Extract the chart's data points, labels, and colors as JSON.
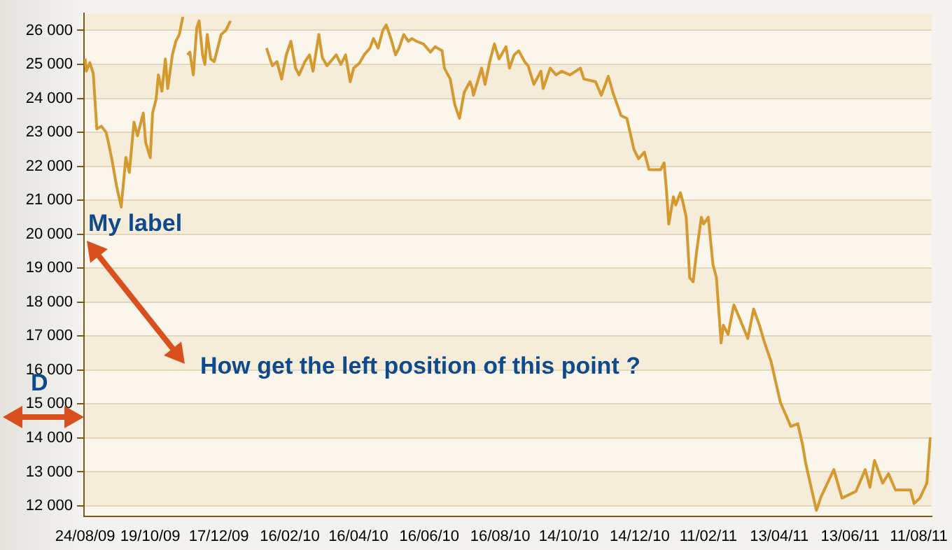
{
  "chart_data": {
    "type": "line",
    "color": "#d49a30",
    "grid": "y",
    "line_style": "solid",
    "x": [
      "2009-08-24",
      "2009-08-25",
      "2009-08-28",
      "2009-08-31",
      "2009-09-03",
      "2009-09-07",
      "2009-09-11",
      "2009-09-13",
      "2009-09-16",
      "2009-09-20",
      "2009-09-24",
      "2009-09-28",
      "2009-10-01",
      "2009-10-05",
      "2009-10-08",
      "2009-10-13",
      "2009-10-15",
      "2009-10-19",
      "2009-10-21",
      "2009-10-24",
      "2009-10-26",
      "2009-10-29",
      "2009-11-01",
      "2009-11-03",
      "2009-11-05",
      "2009-11-07",
      "2009-11-10",
      "2009-11-13",
      "2009-11-16",
      "2009-11-18",
      "2009-11-20",
      "2009-11-22",
      "2009-11-25",
      "2009-11-28",
      "2009-11-30",
      "2009-12-03",
      "2009-12-05",
      "2009-12-07",
      "2009-12-10",
      "2009-12-13",
      "2009-12-19",
      "2009-12-23",
      "2009-12-27",
      "2009-12-30",
      "2010-01-03",
      "2010-01-08",
      "2010-01-11",
      "2010-01-15",
      "2010-01-21",
      "2010-01-27",
      "2010-01-30",
      "2010-02-01",
      "2010-02-05",
      "2010-02-09",
      "2010-02-13",
      "2010-02-17",
      "2010-02-21",
      "2010-02-24",
      "2010-03-01",
      "2010-03-05",
      "2010-03-08",
      "2010-03-13",
      "2010-03-16",
      "2010-03-20",
      "2010-03-25",
      "2010-03-28",
      "2010-04-01",
      "2010-04-05",
      "2010-04-09",
      "2010-04-12",
      "2010-04-17",
      "2010-04-21",
      "2010-04-26",
      "2010-04-29",
      "2010-05-03",
      "2010-05-07",
      "2010-05-10",
      "2010-05-14",
      "2010-05-18",
      "2010-05-21",
      "2010-05-25",
      "2010-05-29",
      "2010-06-01",
      "2010-06-05",
      "2010-06-11",
      "2010-06-17",
      "2010-06-21",
      "2010-06-27",
      "2010-06-29",
      "2010-07-04",
      "2010-07-08",
      "2010-07-12",
      "2010-07-16",
      "2010-07-21",
      "2010-07-23",
      "2010-07-24",
      "2010-07-31",
      "2010-08-03",
      "2010-08-07",
      "2010-08-11",
      "2010-08-15",
      "2010-08-21",
      "2010-08-24",
      "2010-08-28",
      "2010-09-01",
      "2010-09-06",
      "2010-09-09",
      "2010-09-14",
      "2010-09-20",
      "2010-09-22",
      "2010-09-28",
      "2010-10-03",
      "2010-10-08",
      "2010-10-15",
      "2010-10-24",
      "2010-10-27",
      "2010-11-06",
      "2010-11-11",
      "2010-11-17",
      "2010-11-21",
      "2010-11-28",
      "2010-12-03",
      "2010-12-09",
      "2010-12-13",
      "2010-12-18",
      "2010-12-22",
      "2011-01-01",
      "2011-01-04",
      "2011-01-06",
      "2011-01-08",
      "2011-01-12",
      "2011-01-14",
      "2011-01-18",
      "2011-01-20",
      "2011-01-23",
      "2011-01-26",
      "2011-01-29",
      "2011-02-01",
      "2011-02-05",
      "2011-02-07",
      "2011-02-11",
      "2011-02-15",
      "2011-02-18",
      "2011-02-22",
      "2011-02-24",
      "2011-02-28",
      "2011-03-05",
      "2011-03-10",
      "2011-03-17",
      "2011-03-22",
      "2011-03-27",
      "2011-03-31",
      "2011-04-06",
      "2011-04-14",
      "2011-04-23",
      "2011-04-29",
      "2011-05-03",
      "2011-05-06",
      "2011-05-15",
      "2011-05-19",
      "2011-05-30",
      "2011-06-06",
      "2011-06-18",
      "2011-06-26",
      "2011-06-30",
      "2011-07-04",
      "2011-07-11",
      "2011-07-16",
      "2011-07-22",
      "2011-08-04",
      "2011-08-07",
      "2011-08-12",
      "2011-08-18",
      "2011-08-21"
    ],
    "values": [
      25170,
      24800,
      25050,
      24730,
      23100,
      23180,
      23000,
      22700,
      22200,
      21420,
      20800,
      22260,
      21820,
      23300,
      22900,
      23570,
      22700,
      22250,
      23570,
      23970,
      24690,
      24210,
      25160,
      24290,
      24770,
      25280,
      25680,
      25880,
      26400,
      null,
      25280,
      25360,
      24690,
      26080,
      26280,
      25280,
      25000,
      25880,
      25160,
      25080,
      25880,
      26000,
      26280,
      null,
      null,
      null,
      null,
      null,
      null,
      25480,
      25160,
      24960,
      25080,
      24570,
      25280,
      25680,
      24890,
      24690,
      25080,
      25280,
      24800,
      25880,
      25200,
      24960,
      25160,
      25280,
      25000,
      25280,
      24490,
      24890,
      25040,
      25280,
      25480,
      25760,
      25480,
      26000,
      26160,
      25760,
      25280,
      25480,
      25880,
      25680,
      25760,
      25680,
      25600,
      25360,
      25520,
      25400,
      24890,
      24570,
      23810,
      23410,
      24170,
      24490,
      24290,
      24090,
      24890,
      24410,
      25080,
      25600,
      25160,
      25520,
      24890,
      25280,
      25400,
      25080,
      24960,
      24410,
      24800,
      24290,
      24890,
      24690,
      24800,
      24690,
      24890,
      24570,
      24490,
      24090,
      24650,
      24170,
      23490,
      23410,
      22500,
      22220,
      22420,
      21900,
      21900,
      22100,
      21300,
      20300,
      21100,
      20860,
      21220,
      20970,
      20500,
      18720,
      18600,
      19500,
      20500,
      20300,
      20500,
      19110,
      18720,
      16800,
      17320,
      17050,
      17920,
      17520,
      16930,
      17800,
      17320,
      16850,
      16250,
      15050,
      14340,
      14420,
      13820,
      13220,
      11870,
      12270,
      13070,
      12230,
      12430,
      13070,
      12550,
      13340,
      12670,
      12950,
      12470,
      12470,
      12070,
      12230,
      12670,
      14020
    ],
    "xlim": [
      "2009-08-23",
      "2011-08-22"
    ],
    "xticks": [
      {
        "value": "2009-08-24",
        "label": "24/08/09"
      },
      {
        "value": "2009-10-19",
        "label": "19/10/09"
      },
      {
        "value": "2009-12-17",
        "label": "17/12/09"
      },
      {
        "value": "2010-02-16",
        "label": "16/02/10"
      },
      {
        "value": "2010-04-16",
        "label": "16/04/10"
      },
      {
        "value": "2010-06-16",
        "label": "16/06/10"
      },
      {
        "value": "2010-08-16",
        "label": "16/08/10"
      },
      {
        "value": "2010-10-14",
        "label": "14/10/10"
      },
      {
        "value": "2010-12-14",
        "label": "14/12/10"
      },
      {
        "value": "2011-02-11",
        "label": "11/02/11"
      },
      {
        "value": "2011-04-13",
        "label": "13/04/11"
      },
      {
        "value": "2011-06-13",
        "label": "13/06/11"
      },
      {
        "value": "2011-08-11",
        "label": "11/08/11"
      }
    ],
    "ylim": [
      11700,
      26500
    ],
    "yticks": [
      {
        "value": 12000,
        "label": "12 000"
      },
      {
        "value": 13000,
        "label": "13 000"
      },
      {
        "value": 14000,
        "label": "14 000"
      },
      {
        "value": 15000,
        "label": "15 000"
      },
      {
        "value": 16000,
        "label": "16 000"
      },
      {
        "value": 17000,
        "label": "17 000"
      },
      {
        "value": 18000,
        "label": "18 000"
      },
      {
        "value": 19000,
        "label": "19 000"
      },
      {
        "value": 20000,
        "label": "20 000"
      },
      {
        "value": 21000,
        "label": "21 000"
      },
      {
        "value": 22000,
        "label": "22 000"
      },
      {
        "value": 23000,
        "label": "23 000"
      },
      {
        "value": 24000,
        "label": "24 000"
      },
      {
        "value": 25000,
        "label": "25 000"
      },
      {
        "value": 26000,
        "label": "26 000"
      }
    ],
    "annotations": [
      "My label",
      "How get the left position of this point ?",
      "D"
    ]
  }
}
